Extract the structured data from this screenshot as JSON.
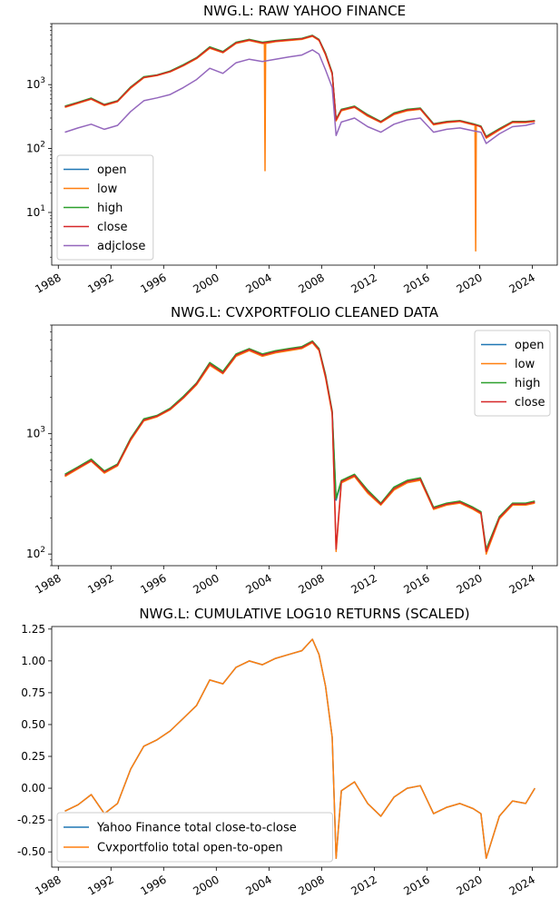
{
  "figure": {
    "ticker": "NWG.L"
  },
  "chart_data": [
    {
      "type": "line",
      "title": "NWG.L: RAW YAHOO FINANCE",
      "xlabel": "",
      "ylabel": "",
      "yscale": "log",
      "ylim": [
        1.5,
        9000
      ],
      "xlim": [
        1987.5,
        2025.9
      ],
      "x_ticks": [
        "1988",
        "1992",
        "1996",
        "2000",
        "2004",
        "2008",
        "2012",
        "2016",
        "2020",
        "2024"
      ],
      "y_ticks": [
        "10^1",
        "10^2",
        "10^3"
      ],
      "legend": {
        "placement": "lower-left"
      },
      "x": [
        1988.5,
        1989.5,
        1990.5,
        1991.5,
        1992.5,
        1993.5,
        1994.5,
        1995.5,
        1996.5,
        1997.5,
        1998.5,
        1999.5,
        2000.5,
        2001.5,
        2002.5,
        2003.5,
        2004.5,
        2005.5,
        2006.5,
        2007.3,
        2007.8,
        2008.3,
        2008.8,
        2009.1,
        2009.5,
        2010.5,
        2011.5,
        2012.5,
        2013.5,
        2014.5,
        2015.5,
        2016.5,
        2017.5,
        2018.5,
        2019.5,
        2020.1,
        2020.5,
        2021.5,
        2022.5,
        2023.5,
        2024.2
      ],
      "series": [
        {
          "name": "open",
          "color": "#1f77b4",
          "values": [
            450,
            520,
            600,
            480,
            550,
            900,
            1300,
            1400,
            1600,
            2000,
            2600,
            3800,
            3200,
            4500,
            5000,
            4500,
            4800,
            5000,
            5200,
            5800,
            5000,
            3000,
            1500,
            280,
            400,
            450,
            330,
            260,
            350,
            400,
            420,
            240,
            260,
            270,
            240,
            220,
            150,
            200,
            260,
            260,
            270
          ]
        },
        {
          "name": "low",
          "color": "#ff7f0e",
          "values": [
            440,
            510,
            590,
            470,
            540,
            880,
            1280,
            1380,
            1580,
            1970,
            2550,
            3700,
            3150,
            4400,
            4900,
            4400,
            4700,
            4900,
            5100,
            5700,
            4900,
            2900,
            1450,
            270,
            390,
            440,
            320,
            255,
            340,
            390,
            410,
            235,
            255,
            265,
            235,
            215,
            145,
            195,
            255,
            255,
            265
          ]
        },
        {
          "name": "high",
          "color": "#2ca02c",
          "values": [
            460,
            530,
            615,
            490,
            560,
            920,
            1330,
            1420,
            1630,
            2050,
            2650,
            3900,
            3300,
            4600,
            5100,
            4600,
            4900,
            5100,
            5300,
            5900,
            5100,
            3100,
            1550,
            290,
            410,
            460,
            340,
            265,
            360,
            410,
            430,
            245,
            265,
            275,
            245,
            225,
            155,
            205,
            265,
            265,
            275
          ]
        },
        {
          "name": "close",
          "color": "#d62728",
          "values": [
            450,
            520,
            600,
            480,
            550,
            900,
            1300,
            1400,
            1600,
            2000,
            2600,
            3800,
            3200,
            4500,
            5000,
            4500,
            4800,
            5000,
            5200,
            5800,
            5000,
            3000,
            1500,
            280,
            400,
            450,
            330,
            260,
            350,
            400,
            420,
            240,
            260,
            270,
            240,
            220,
            150,
            200,
            260,
            260,
            270
          ]
        },
        {
          "name": "adjclose",
          "color": "#9467bd",
          "values": [
            180,
            210,
            240,
            200,
            230,
            380,
            560,
            620,
            700,
            900,
            1200,
            1800,
            1500,
            2200,
            2500,
            2300,
            2500,
            2700,
            2900,
            3500,
            3000,
            1700,
            900,
            160,
            260,
            300,
            220,
            180,
            240,
            280,
            300,
            180,
            200,
            210,
            190,
            180,
            120,
            170,
            220,
            230,
            250
          ]
        }
      ],
      "annotations": [
        {
          "series": "low",
          "x": 2003.7,
          "value": 45
        },
        {
          "series": "low",
          "x": 2019.7,
          "value": 2.5
        }
      ]
    },
    {
      "type": "line",
      "title": "NWG.L: CVXPORTFOLIO CLEANED DATA",
      "xlabel": "",
      "ylabel": "",
      "yscale": "log",
      "ylim": [
        80,
        8000
      ],
      "xlim": [
        1987.5,
        2025.9
      ],
      "x_ticks": [
        "1988",
        "1992",
        "1996",
        "2000",
        "2004",
        "2008",
        "2012",
        "2016",
        "2020",
        "2024"
      ],
      "y_ticks": [
        "10^2",
        "10^3"
      ],
      "legend": {
        "placement": "upper-right"
      },
      "x": [
        1988.5,
        1989.5,
        1990.5,
        1991.5,
        1992.5,
        1993.5,
        1994.5,
        1995.5,
        1996.5,
        1997.5,
        1998.5,
        1999.5,
        2000.5,
        2001.5,
        2002.5,
        2003.5,
        2004.5,
        2005.5,
        2006.5,
        2007.3,
        2007.8,
        2008.3,
        2008.8,
        2009.1,
        2009.5,
        2010.5,
        2011.5,
        2012.5,
        2013.5,
        2014.5,
        2015.5,
        2016.5,
        2017.5,
        2018.5,
        2019.5,
        2020.1,
        2020.5,
        2021.5,
        2022.5,
        2023.5,
        2024.2
      ],
      "series": [
        {
          "name": "open",
          "color": "#1f77b4",
          "values": [
            450,
            520,
            600,
            480,
            550,
            900,
            1300,
            1400,
            1600,
            2000,
            2600,
            3800,
            3200,
            4500,
            5000,
            4500,
            4800,
            5000,
            5200,
            5800,
            5000,
            3000,
            1500,
            280,
            400,
            450,
            330,
            260,
            350,
            400,
            420,
            240,
            260,
            270,
            240,
            220,
            105,
            200,
            260,
            260,
            270
          ]
        },
        {
          "name": "low",
          "color": "#ff7f0e",
          "values": [
            440,
            510,
            590,
            470,
            540,
            880,
            1280,
            1380,
            1580,
            1970,
            2550,
            3700,
            3150,
            4400,
            4900,
            4400,
            4700,
            4900,
            5100,
            5700,
            4900,
            2900,
            1450,
            105,
            390,
            440,
            320,
            255,
            340,
            390,
            410,
            235,
            255,
            265,
            235,
            215,
            100,
            195,
            255,
            255,
            265
          ]
        },
        {
          "name": "high",
          "color": "#2ca02c",
          "values": [
            460,
            530,
            615,
            490,
            560,
            920,
            1330,
            1420,
            1630,
            2050,
            2650,
            3900,
            3300,
            4600,
            5100,
            4600,
            4900,
            5100,
            5300,
            5900,
            5100,
            3100,
            1550,
            290,
            410,
            460,
            340,
            265,
            360,
            410,
            430,
            245,
            265,
            275,
            245,
            225,
            110,
            205,
            265,
            265,
            275
          ]
        },
        {
          "name": "close",
          "color": "#d62728",
          "values": [
            450,
            520,
            600,
            480,
            550,
            900,
            1300,
            1400,
            1600,
            2000,
            2600,
            3800,
            3200,
            4500,
            5000,
            4500,
            4800,
            5000,
            5200,
            5800,
            5000,
            3000,
            1500,
            110,
            400,
            450,
            330,
            260,
            350,
            400,
            420,
            240,
            260,
            270,
            240,
            220,
            105,
            200,
            260,
            260,
            270
          ]
        }
      ]
    },
    {
      "type": "line",
      "title": "NWG.L: CUMULATIVE LOG10 RETURNS (SCALED)",
      "xlabel": "",
      "ylabel": "",
      "yscale": "linear",
      "ylim": [
        -0.62,
        1.27
      ],
      "xlim": [
        1987.5,
        2025.9
      ],
      "x_ticks": [
        "1988",
        "1992",
        "1996",
        "2000",
        "2004",
        "2008",
        "2012",
        "2016",
        "2020",
        "2024"
      ],
      "y_ticks": [
        "1.25",
        "1.00",
        "0.75",
        "0.50",
        "0.25",
        "0.00",
        "-0.25",
        "-0.50"
      ],
      "y_tick_values": [
        1.25,
        1.0,
        0.75,
        0.5,
        0.25,
        0.0,
        -0.25,
        -0.5
      ],
      "legend": {
        "placement": "lower-left"
      },
      "x": [
        1988.5,
        1989.5,
        1990.5,
        1991.5,
        1992.5,
        1993.5,
        1994.5,
        1995.5,
        1996.5,
        1997.5,
        1998.5,
        1999.5,
        2000.5,
        2001.5,
        2002.5,
        2003.5,
        2004.5,
        2005.5,
        2006.5,
        2007.3,
        2007.8,
        2008.3,
        2008.8,
        2009.1,
        2009.5,
        2010.5,
        2011.5,
        2012.5,
        2013.5,
        2014.5,
        2015.5,
        2016.5,
        2017.5,
        2018.5,
        2019.5,
        2020.1,
        2020.5,
        2021.5,
        2022.5,
        2023.5,
        2024.2
      ],
      "series": [
        {
          "name": "Yahoo Finance total close-to-close",
          "color": "#1f77b4",
          "values": [
            -0.18,
            -0.13,
            -0.05,
            -0.2,
            -0.12,
            0.15,
            0.33,
            0.38,
            0.45,
            0.55,
            0.65,
            0.85,
            0.82,
            0.95,
            1.0,
            0.97,
            1.02,
            1.05,
            1.08,
            1.17,
            1.05,
            0.8,
            0.4,
            -0.55,
            -0.02,
            0.05,
            -0.12,
            -0.22,
            -0.07,
            0.0,
            0.02,
            -0.2,
            -0.15,
            -0.12,
            -0.16,
            -0.2,
            -0.55,
            -0.22,
            -0.1,
            -0.12,
            0.0
          ]
        },
        {
          "name": "Cvxportfolio total open-to-open",
          "color": "#ff7f0e",
          "values": [
            -0.18,
            -0.13,
            -0.05,
            -0.2,
            -0.12,
            0.15,
            0.33,
            0.38,
            0.45,
            0.55,
            0.65,
            0.85,
            0.82,
            0.95,
            1.0,
            0.97,
            1.02,
            1.05,
            1.08,
            1.17,
            1.05,
            0.8,
            0.4,
            -0.55,
            -0.02,
            0.05,
            -0.12,
            -0.22,
            -0.07,
            0.0,
            0.02,
            -0.2,
            -0.15,
            -0.12,
            -0.16,
            -0.2,
            -0.55,
            -0.22,
            -0.1,
            -0.12,
            0.0
          ]
        }
      ]
    }
  ]
}
